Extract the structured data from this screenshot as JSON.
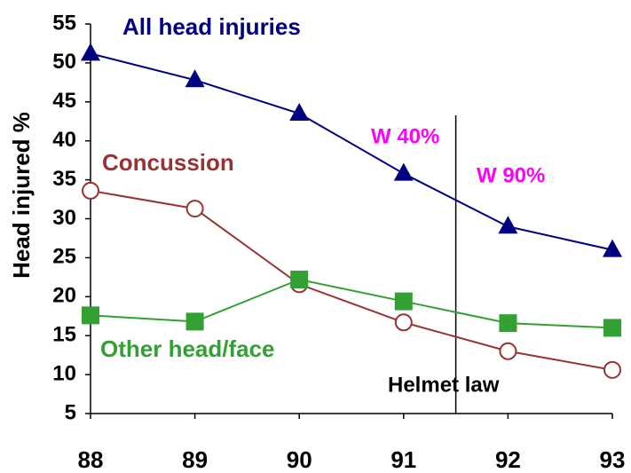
{
  "chart_data": {
    "type": "line",
    "y_label": "Head injured %",
    "x": [
      88,
      89,
      90,
      91,
      92,
      93
    ],
    "xlim": [
      88,
      93
    ],
    "xticks": [
      88,
      89,
      90,
      91,
      92,
      93
    ],
    "ylim": [
      5,
      55
    ],
    "yticks": [
      5,
      10,
      15,
      20,
      25,
      30,
      35,
      40,
      45,
      50,
      55
    ],
    "series": [
      {
        "name": "All head injuries",
        "color": "#000080",
        "marker": "triangle",
        "values": [
          51.2,
          47.8,
          43.5,
          35.8,
          29,
          26
        ]
      },
      {
        "name": "Concussion",
        "color": "#993333",
        "marker": "open-circle",
        "values": [
          33.6,
          31.3,
          21.6,
          16.7,
          13,
          10.6
        ]
      },
      {
        "name": "Other head/face",
        "color": "#33a033",
        "marker": "square",
        "values": [
          17.6,
          16.8,
          22.2,
          19.4,
          16.6,
          16
        ]
      }
    ],
    "annotations": [
      {
        "text": "W 40%",
        "color": "#ff00ff"
      },
      {
        "text": "W 90%",
        "color": "#ff00ff"
      }
    ],
    "vline": {
      "label": "Helmet law",
      "x": 91.5,
      "color": "#000000"
    }
  }
}
